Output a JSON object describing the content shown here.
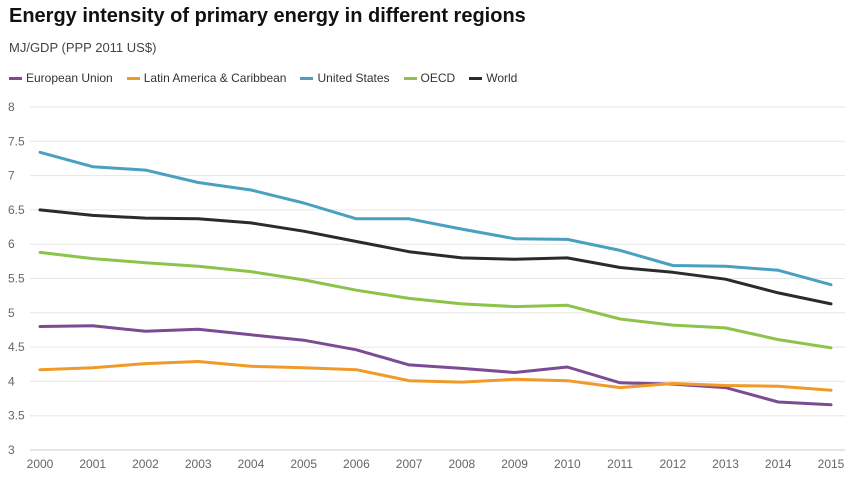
{
  "title": "Energy intensity of primary energy in different regions",
  "subtitle": "MJ/GDP (PPP 2011 US$)",
  "chart_data": {
    "type": "line",
    "title": "Energy intensity of primary energy in different regions",
    "subtitle": "MJ/GDP (PPP 2011 US$)",
    "xlabel": "",
    "ylabel": "",
    "x": [
      2000,
      2001,
      2002,
      2003,
      2004,
      2005,
      2006,
      2007,
      2008,
      2009,
      2010,
      2011,
      2012,
      2013,
      2014,
      2015
    ],
    "ylim": [
      3,
      8
    ],
    "yticks": [
      3,
      3.5,
      4,
      4.5,
      5,
      5.5,
      6,
      6.5,
      7,
      7.5,
      8
    ],
    "grid": "horizontal",
    "legend": "top-left",
    "series": [
      {
        "name": "European Union",
        "color": "#7b4c93",
        "values": [
          4.8,
          4.81,
          4.73,
          4.76,
          4.68,
          4.6,
          4.46,
          4.24,
          4.19,
          4.13,
          4.21,
          3.98,
          3.96,
          3.91,
          3.7,
          3.66
        ]
      },
      {
        "name": "Latin America & Caribbean",
        "color": "#f09a2a",
        "values": [
          4.17,
          4.2,
          4.26,
          4.29,
          4.22,
          4.2,
          4.17,
          4.01,
          3.99,
          4.03,
          4.01,
          3.91,
          3.97,
          3.94,
          3.93,
          3.87
        ]
      },
      {
        "name": "United States",
        "color": "#4aa0c0",
        "values": [
          7.34,
          7.13,
          7.08,
          6.9,
          6.79,
          6.6,
          6.37,
          6.37,
          6.22,
          6.08,
          6.07,
          5.91,
          5.69,
          5.68,
          5.62,
          5.41
        ]
      },
      {
        "name": "OECD",
        "color": "#8cc34a",
        "values": [
          5.88,
          5.79,
          5.73,
          5.68,
          5.6,
          5.48,
          5.33,
          5.21,
          5.13,
          5.09,
          5.11,
          4.91,
          4.82,
          4.78,
          4.61,
          4.49
        ]
      },
      {
        "name": "World",
        "color": "#2b2b2b",
        "values": [
          6.5,
          6.42,
          6.38,
          6.37,
          6.31,
          6.19,
          6.04,
          5.89,
          5.8,
          5.78,
          5.8,
          5.66,
          5.59,
          5.49,
          5.29,
          5.13
        ]
      }
    ]
  }
}
